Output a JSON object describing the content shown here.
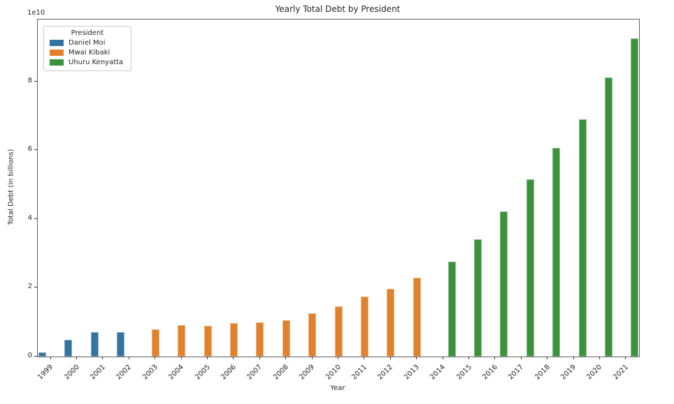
{
  "chart_data": {
    "type": "bar",
    "title": "Yearly Total Debt by President",
    "xlabel": "Year",
    "ylabel": "Total Debt (in billions)",
    "y_offset_text": "1e10",
    "ylim": [
      0,
      98000000000
    ],
    "yticks": [
      {
        "value": 0,
        "label": "0"
      },
      {
        "value": 20000000000,
        "label": "2"
      },
      {
        "value": 40000000000,
        "label": "4"
      },
      {
        "value": 60000000000,
        "label": "6"
      },
      {
        "value": 80000000000,
        "label": "8"
      }
    ],
    "grid": false,
    "legend_position": "upper left",
    "legend_title": "President",
    "series": [
      {
        "name": "Daniel Moi",
        "color": "#3274a1"
      },
      {
        "name": "Mwai Kibaki",
        "color": "#e1812c"
      },
      {
        "name": "Uhuru Kenyatta",
        "color": "#3a923a"
      }
    ],
    "categories": [
      "1999",
      "2000",
      "2001",
      "2002",
      "2003",
      "2004",
      "2005",
      "2006",
      "2007",
      "2008",
      "2009",
      "2010",
      "2011",
      "2012",
      "2013",
      "2014",
      "2015",
      "2016",
      "2017",
      "2018",
      "2019",
      "2020",
      "2021"
    ],
    "bars": [
      {
        "year": "1999",
        "president": "Daniel Moi",
        "value": 1300000000
      },
      {
        "year": "2000",
        "president": "Daniel Moi",
        "value": 4800000000
      },
      {
        "year": "2001",
        "president": "Daniel Moi",
        "value": 7200000000
      },
      {
        "year": "2002",
        "president": "Daniel Moi",
        "value": 7200000000
      },
      {
        "year": "2003",
        "president": "Mwai Kibaki",
        "value": 8000000000
      },
      {
        "year": "2004",
        "president": "Mwai Kibaki",
        "value": 9100000000
      },
      {
        "year": "2005",
        "president": "Mwai Kibaki",
        "value": 8900000000
      },
      {
        "year": "2006",
        "president": "Mwai Kibaki",
        "value": 9700000000
      },
      {
        "year": "2007",
        "president": "Mwai Kibaki",
        "value": 9900000000
      },
      {
        "year": "2008",
        "president": "Mwai Kibaki",
        "value": 10600000000
      },
      {
        "year": "2009",
        "president": "Mwai Kibaki",
        "value": 12500000000
      },
      {
        "year": "2010",
        "president": "Mwai Kibaki",
        "value": 14600000000
      },
      {
        "year": "2011",
        "president": "Mwai Kibaki",
        "value": 17500000000
      },
      {
        "year": "2012",
        "president": "Mwai Kibaki",
        "value": 19700000000
      },
      {
        "year": "2013",
        "president": "Mwai Kibaki",
        "value": 23000000000
      },
      {
        "year": "2014",
        "president": "Uhuru Kenyatta",
        "value": 27500000000
      },
      {
        "year": "2015",
        "president": "Uhuru Kenyatta",
        "value": 34100000000
      },
      {
        "year": "2016",
        "president": "Uhuru Kenyatta",
        "value": 42300000000
      },
      {
        "year": "2017",
        "president": "Uhuru Kenyatta",
        "value": 51500000000
      },
      {
        "year": "2018",
        "president": "Uhuru Kenyatta",
        "value": 60600000000
      },
      {
        "year": "2019",
        "president": "Uhuru Kenyatta",
        "value": 69000000000
      },
      {
        "year": "2020",
        "president": "Uhuru Kenyatta",
        "value": 81200000000
      },
      {
        "year": "2021",
        "president": "Uhuru Kenyatta",
        "value": 92600000000
      }
    ]
  }
}
